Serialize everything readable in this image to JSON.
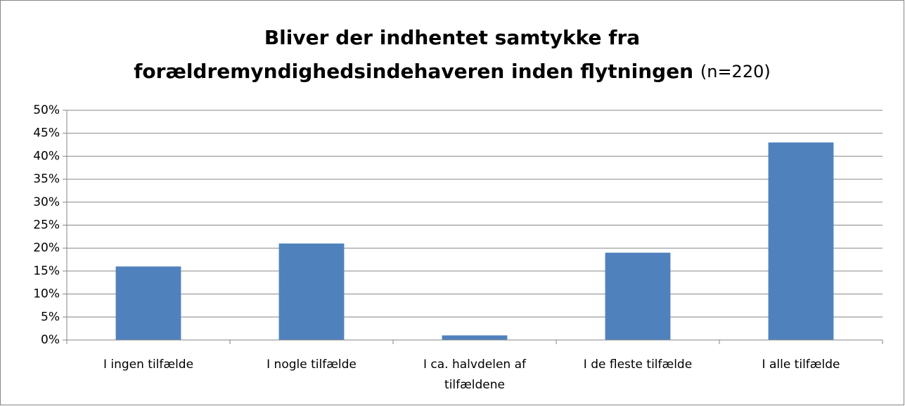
{
  "chart_data": {
    "type": "bar",
    "title": [
      "Bliver der indhentet samtykke fra",
      "forældremyndighedsindehaveren inden flytningen"
    ],
    "title_note": "(n=220)",
    "categories": [
      "I ingen tilfælde",
      "I nogle tilfælde",
      "I ca. halvdelen af tilfældene",
      "I de fleste tilfælde",
      "I alle tilfælde"
    ],
    "values": [
      16,
      21,
      1,
      19,
      43
    ],
    "color": "#4f81bd",
    "ylim": [
      0,
      50
    ],
    "yticks": [
      {
        "value": 0,
        "label": "0%"
      },
      {
        "value": 5,
        "label": "5%"
      },
      {
        "value": 10,
        "label": "10%"
      },
      {
        "value": 15,
        "label": "15%"
      },
      {
        "value": 20,
        "label": "20%"
      },
      {
        "value": 25,
        "label": "25%"
      },
      {
        "value": 30,
        "label": "30%"
      },
      {
        "value": 35,
        "label": "35%"
      },
      {
        "value": 40,
        "label": "40%"
      },
      {
        "value": 45,
        "label": "45%"
      },
      {
        "value": 50,
        "label": "50%"
      }
    ],
    "grid": true
  }
}
